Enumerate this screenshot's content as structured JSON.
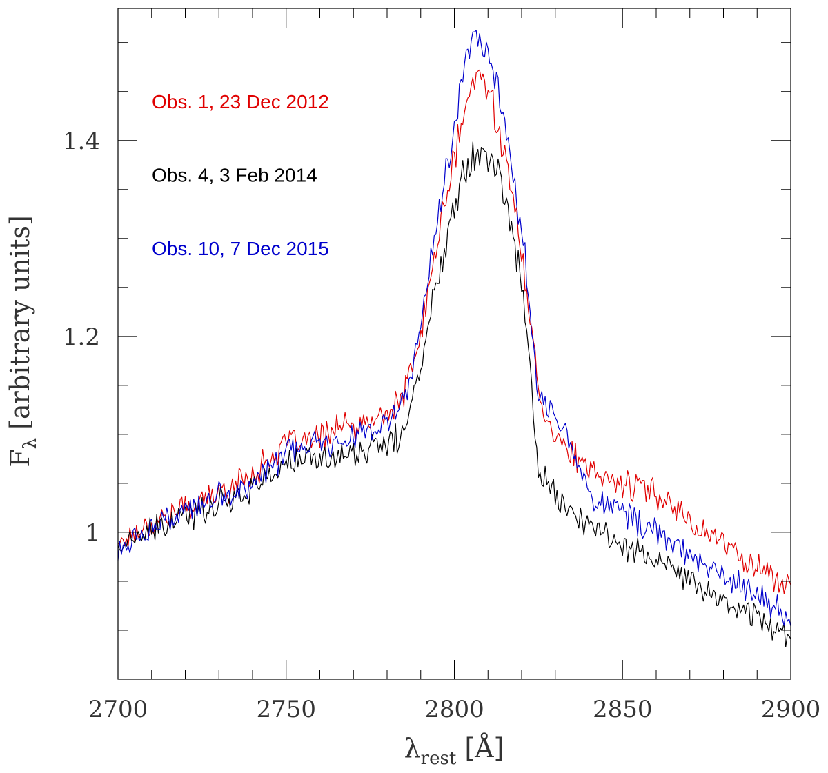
{
  "chart_data": {
    "type": "line",
    "xlabel": "λ",
    "xlabel_sub": "rest",
    "xlabel_unit": "[Å]",
    "ylabel": "F",
    "ylabel_sub": "λ",
    "ylabel_unit": "[arbitrary units]",
    "xlim": [
      2700,
      2900
    ],
    "ylim": [
      0.85,
      1.535
    ],
    "x_major_ticks": [
      2700,
      2750,
      2800,
      2850,
      2900
    ],
    "x_tick_labels": [
      "2700",
      "2750",
      "2800",
      "2850",
      "2900"
    ],
    "x_minor_step": 10,
    "y_major_ticks": [
      1,
      1.2,
      1.4
    ],
    "y_tick_labels": [
      "1",
      "1.2",
      "1.4"
    ],
    "y_minor_step": 0.05,
    "grid": false,
    "legend_position": "top-left",
    "series": [
      {
        "name": "Obs. 1, 23 Dec 2012",
        "color": "#e00000",
        "points": [
          [
            2700,
            0.99
          ],
          [
            2710,
            1.01
          ],
          [
            2720,
            1.025
          ],
          [
            2730,
            1.04
          ],
          [
            2740,
            1.06
          ],
          [
            2750,
            1.09
          ],
          [
            2760,
            1.095
          ],
          [
            2765,
            1.11
          ],
          [
            2770,
            1.105
          ],
          [
            2780,
            1.12
          ],
          [
            2785,
            1.14
          ],
          [
            2790,
            1.2
          ],
          [
            2795,
            1.3
          ],
          [
            2800,
            1.38
          ],
          [
            2803,
            1.43
          ],
          [
            2806,
            1.46
          ],
          [
            2808,
            1.47
          ],
          [
            2810,
            1.45
          ],
          [
            2813,
            1.42
          ],
          [
            2816,
            1.37
          ],
          [
            2820,
            1.28
          ],
          [
            2822,
            1.24
          ],
          [
            2825,
            1.14
          ],
          [
            2830,
            1.1
          ],
          [
            2835,
            1.08
          ],
          [
            2840,
            1.06
          ],
          [
            2845,
            1.055
          ],
          [
            2850,
            1.05
          ],
          [
            2855,
            1.045
          ],
          [
            2860,
            1.04
          ],
          [
            2865,
            1.03
          ],
          [
            2870,
            1.01
          ],
          [
            2875,
            1.0
          ],
          [
            2880,
            0.99
          ],
          [
            2885,
            0.975
          ],
          [
            2890,
            0.965
          ],
          [
            2895,
            0.955
          ],
          [
            2900,
            0.94
          ]
        ]
      },
      {
        "name": "Obs. 4, 3 Feb 2014",
        "color": "#000000",
        "points": [
          [
            2700,
            0.985
          ],
          [
            2710,
            1.0
          ],
          [
            2720,
            1.015
          ],
          [
            2730,
            1.03
          ],
          [
            2740,
            1.045
          ],
          [
            2750,
            1.07
          ],
          [
            2760,
            1.075
          ],
          [
            2770,
            1.08
          ],
          [
            2780,
            1.09
          ],
          [
            2785,
            1.1
          ],
          [
            2790,
            1.17
          ],
          [
            2795,
            1.26
          ],
          [
            2800,
            1.34
          ],
          [
            2803,
            1.37
          ],
          [
            2806,
            1.39
          ],
          [
            2808,
            1.395
          ],
          [
            2810,
            1.38
          ],
          [
            2813,
            1.37
          ],
          [
            2816,
            1.33
          ],
          [
            2820,
            1.25
          ],
          [
            2822,
            1.2
          ],
          [
            2824,
            1.1
          ],
          [
            2825,
            1.06
          ],
          [
            2830,
            1.04
          ],
          [
            2835,
            1.02
          ],
          [
            2840,
            1.005
          ],
          [
            2850,
            0.99
          ],
          [
            2860,
            0.97
          ],
          [
            2870,
            0.95
          ],
          [
            2880,
            0.93
          ],
          [
            2890,
            0.915
          ],
          [
            2900,
            0.895
          ]
        ]
      },
      {
        "name": "Obs. 10, 7 Dec 2015",
        "color": "#0000cc",
        "points": [
          [
            2700,
            0.98
          ],
          [
            2710,
            1.005
          ],
          [
            2720,
            1.02
          ],
          [
            2730,
            1.035
          ],
          [
            2740,
            1.05
          ],
          [
            2750,
            1.08
          ],
          [
            2760,
            1.09
          ],
          [
            2770,
            1.1
          ],
          [
            2780,
            1.11
          ],
          [
            2785,
            1.13
          ],
          [
            2790,
            1.21
          ],
          [
            2795,
            1.32
          ],
          [
            2800,
            1.42
          ],
          [
            2803,
            1.48
          ],
          [
            2806,
            1.5
          ],
          [
            2808,
            1.51
          ],
          [
            2810,
            1.49
          ],
          [
            2813,
            1.46
          ],
          [
            2816,
            1.4
          ],
          [
            2820,
            1.3
          ],
          [
            2822,
            1.25
          ],
          [
            2825,
            1.14
          ],
          [
            2830,
            1.12
          ],
          [
            2835,
            1.09
          ],
          [
            2840,
            1.04
          ],
          [
            2845,
            1.03
          ],
          [
            2850,
            1.02
          ],
          [
            2860,
            1.0
          ],
          [
            2870,
            0.975
          ],
          [
            2880,
            0.955
          ],
          [
            2890,
            0.935
          ],
          [
            2900,
            0.91
          ]
        ]
      }
    ]
  }
}
